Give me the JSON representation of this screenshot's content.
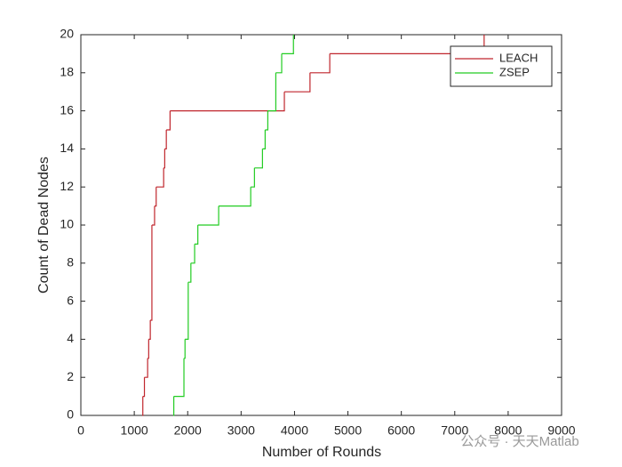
{
  "chart_data": {
    "type": "stairs",
    "xlabel": "Number of Rounds",
    "ylabel": "Count of Dead Nodes",
    "xlim": [
      0,
      9000
    ],
    "ylim": [
      0,
      20
    ],
    "xticks": [
      0,
      1000,
      2000,
      3000,
      4000,
      5000,
      6000,
      7000,
      8000,
      9000
    ],
    "yticks": [
      0,
      2,
      4,
      6,
      8,
      10,
      12,
      14,
      16,
      18,
      20
    ],
    "legend": "top-right",
    "series": [
      {
        "name": "LEACH",
        "color": "#c0262d",
        "x": [
          1150,
          1160,
          1190,
          1250,
          1270,
          1300,
          1330,
          1380,
          1410,
          1550,
          1570,
          1600,
          1670,
          3810,
          4290,
          4660,
          7550
        ],
        "values": [
          0,
          1,
          2,
          3,
          4,
          5,
          10,
          11,
          12,
          13,
          14,
          15,
          16,
          17,
          18,
          19,
          20
        ]
      },
      {
        "name": "ZSEP",
        "color": "#22cc22",
        "x": [
          1730,
          1740,
          1930,
          1950,
          2010,
          2060,
          2130,
          2190,
          2580,
          3180,
          3250,
          3400,
          3450,
          3500,
          3650,
          3760,
          3980
        ],
        "values": [
          0,
          1,
          3,
          4,
          7,
          8,
          9,
          10,
          11,
          12,
          13,
          14,
          15,
          16,
          18,
          19,
          20
        ]
      }
    ],
    "watermark": "公众号 · 天天Matlab"
  }
}
